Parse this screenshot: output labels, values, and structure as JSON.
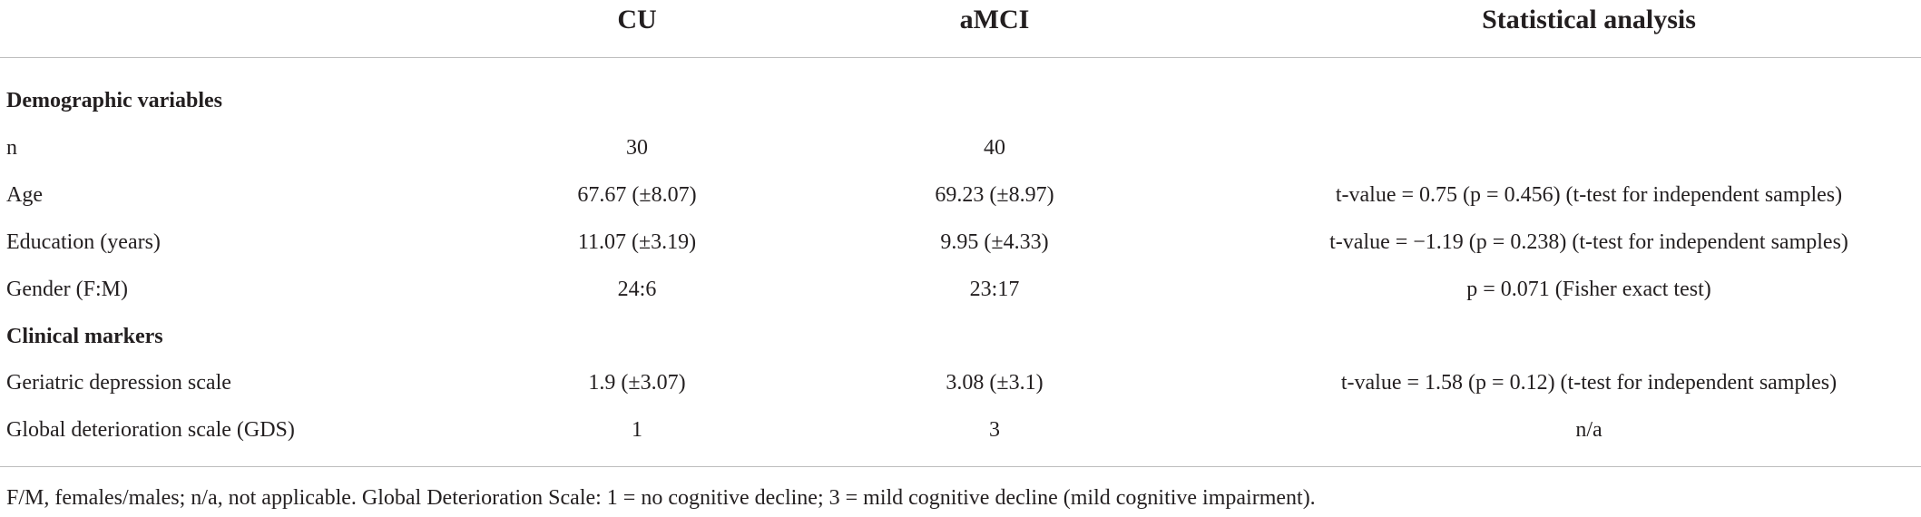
{
  "table": {
    "header": [
      "CU",
      "aMCI",
      "Statistical analysis"
    ],
    "sections": [
      {
        "title": "Demographic variables",
        "rows": [
          [
            "n",
            "30",
            "40"
          ],
          [
            "Age",
            "67.67 (±8.07)",
            "69.23 (±8.97)",
            "t-value = 0.75 (p = 0.456) (t-test for independent samples)"
          ],
          [
            "Education (years)",
            "11.07 (±3.19)",
            "9.95 (±4.33)",
            "t-value = −1.19 (p = 0.238) (t-test for independent samples)"
          ],
          [
            "Gender (F:M)",
            "24:6",
            "23:17",
            "p = 0.071 (Fisher exact test)"
          ]
        ]
      },
      {
        "title": "Clinical markers",
        "rows": [
          [
            "Geriatric depression scale",
            "1.9 (±3.07)",
            "3.08 (±3.1)",
            "t-value = 1.58 (p = 0.12) (t-test for independent samples)"
          ],
          [
            "Global deterioration scale (GDS)",
            "1",
            "3",
            "n/a"
          ]
        ]
      }
    ],
    "footnote": "F/M, females/males; n/a, not applicable. Global Deterioration Scale: 1 = no cognitive decline; 3 = mild cognitive decline (mild cognitive impairment)."
  }
}
